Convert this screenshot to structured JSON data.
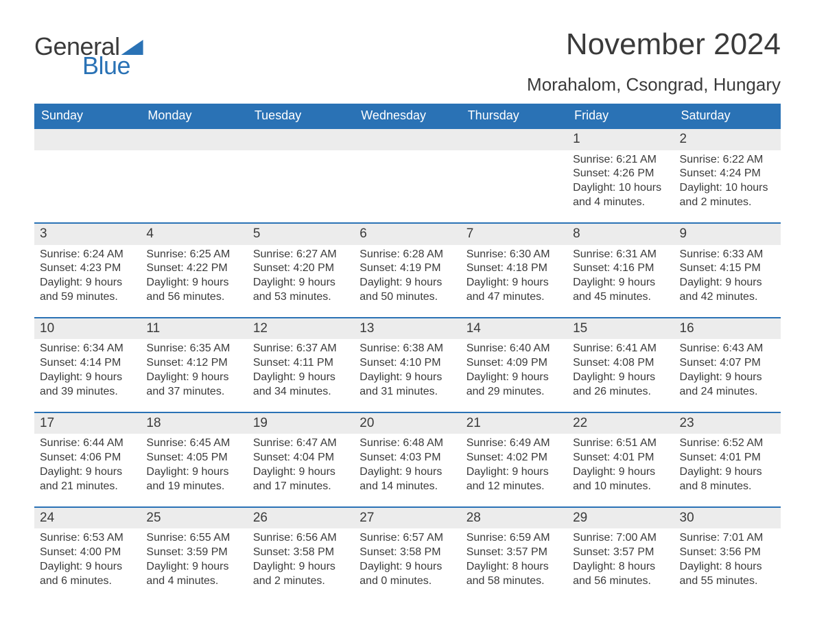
{
  "brand": {
    "general": "General",
    "blue": "Blue"
  },
  "title": "November 2024",
  "location": "Morahalom, Csongrad, Hungary",
  "accent_color": "#2a72b5",
  "stripe_color": "#ececec",
  "text_color": "#3a3a3a",
  "day_headers": [
    "Sunday",
    "Monday",
    "Tuesday",
    "Wednesday",
    "Thursday",
    "Friday",
    "Saturday"
  ],
  "weeks": [
    [
      {
        "blank": true
      },
      {
        "blank": true
      },
      {
        "blank": true
      },
      {
        "blank": true
      },
      {
        "blank": true
      },
      {
        "n": "1",
        "sunrise": "Sunrise: 6:21 AM",
        "sunset": "Sunset: 4:26 PM",
        "d1": "Daylight: 10 hours",
        "d2": "and 4 minutes."
      },
      {
        "n": "2",
        "sunrise": "Sunrise: 6:22 AM",
        "sunset": "Sunset: 4:24 PM",
        "d1": "Daylight: 10 hours",
        "d2": "and 2 minutes."
      }
    ],
    [
      {
        "n": "3",
        "sunrise": "Sunrise: 6:24 AM",
        "sunset": "Sunset: 4:23 PM",
        "d1": "Daylight: 9 hours",
        "d2": "and 59 minutes."
      },
      {
        "n": "4",
        "sunrise": "Sunrise: 6:25 AM",
        "sunset": "Sunset: 4:22 PM",
        "d1": "Daylight: 9 hours",
        "d2": "and 56 minutes."
      },
      {
        "n": "5",
        "sunrise": "Sunrise: 6:27 AM",
        "sunset": "Sunset: 4:20 PM",
        "d1": "Daylight: 9 hours",
        "d2": "and 53 minutes."
      },
      {
        "n": "6",
        "sunrise": "Sunrise: 6:28 AM",
        "sunset": "Sunset: 4:19 PM",
        "d1": "Daylight: 9 hours",
        "d2": "and 50 minutes."
      },
      {
        "n": "7",
        "sunrise": "Sunrise: 6:30 AM",
        "sunset": "Sunset: 4:18 PM",
        "d1": "Daylight: 9 hours",
        "d2": "and 47 minutes."
      },
      {
        "n": "8",
        "sunrise": "Sunrise: 6:31 AM",
        "sunset": "Sunset: 4:16 PM",
        "d1": "Daylight: 9 hours",
        "d2": "and 45 minutes."
      },
      {
        "n": "9",
        "sunrise": "Sunrise: 6:33 AM",
        "sunset": "Sunset: 4:15 PM",
        "d1": "Daylight: 9 hours",
        "d2": "and 42 minutes."
      }
    ],
    [
      {
        "n": "10",
        "sunrise": "Sunrise: 6:34 AM",
        "sunset": "Sunset: 4:14 PM",
        "d1": "Daylight: 9 hours",
        "d2": "and 39 minutes."
      },
      {
        "n": "11",
        "sunrise": "Sunrise: 6:35 AM",
        "sunset": "Sunset: 4:12 PM",
        "d1": "Daylight: 9 hours",
        "d2": "and 37 minutes."
      },
      {
        "n": "12",
        "sunrise": "Sunrise: 6:37 AM",
        "sunset": "Sunset: 4:11 PM",
        "d1": "Daylight: 9 hours",
        "d2": "and 34 minutes."
      },
      {
        "n": "13",
        "sunrise": "Sunrise: 6:38 AM",
        "sunset": "Sunset: 4:10 PM",
        "d1": "Daylight: 9 hours",
        "d2": "and 31 minutes."
      },
      {
        "n": "14",
        "sunrise": "Sunrise: 6:40 AM",
        "sunset": "Sunset: 4:09 PM",
        "d1": "Daylight: 9 hours",
        "d2": "and 29 minutes."
      },
      {
        "n": "15",
        "sunrise": "Sunrise: 6:41 AM",
        "sunset": "Sunset: 4:08 PM",
        "d1": "Daylight: 9 hours",
        "d2": "and 26 minutes."
      },
      {
        "n": "16",
        "sunrise": "Sunrise: 6:43 AM",
        "sunset": "Sunset: 4:07 PM",
        "d1": "Daylight: 9 hours",
        "d2": "and 24 minutes."
      }
    ],
    [
      {
        "n": "17",
        "sunrise": "Sunrise: 6:44 AM",
        "sunset": "Sunset: 4:06 PM",
        "d1": "Daylight: 9 hours",
        "d2": "and 21 minutes."
      },
      {
        "n": "18",
        "sunrise": "Sunrise: 6:45 AM",
        "sunset": "Sunset: 4:05 PM",
        "d1": "Daylight: 9 hours",
        "d2": "and 19 minutes."
      },
      {
        "n": "19",
        "sunrise": "Sunrise: 6:47 AM",
        "sunset": "Sunset: 4:04 PM",
        "d1": "Daylight: 9 hours",
        "d2": "and 17 minutes."
      },
      {
        "n": "20",
        "sunrise": "Sunrise: 6:48 AM",
        "sunset": "Sunset: 4:03 PM",
        "d1": "Daylight: 9 hours",
        "d2": "and 14 minutes."
      },
      {
        "n": "21",
        "sunrise": "Sunrise: 6:49 AM",
        "sunset": "Sunset: 4:02 PM",
        "d1": "Daylight: 9 hours",
        "d2": "and 12 minutes."
      },
      {
        "n": "22",
        "sunrise": "Sunrise: 6:51 AM",
        "sunset": "Sunset: 4:01 PM",
        "d1": "Daylight: 9 hours",
        "d2": "and 10 minutes."
      },
      {
        "n": "23",
        "sunrise": "Sunrise: 6:52 AM",
        "sunset": "Sunset: 4:01 PM",
        "d1": "Daylight: 9 hours",
        "d2": "and 8 minutes."
      }
    ],
    [
      {
        "n": "24",
        "sunrise": "Sunrise: 6:53 AM",
        "sunset": "Sunset: 4:00 PM",
        "d1": "Daylight: 9 hours",
        "d2": "and 6 minutes."
      },
      {
        "n": "25",
        "sunrise": "Sunrise: 6:55 AM",
        "sunset": "Sunset: 3:59 PM",
        "d1": "Daylight: 9 hours",
        "d2": "and 4 minutes."
      },
      {
        "n": "26",
        "sunrise": "Sunrise: 6:56 AM",
        "sunset": "Sunset: 3:58 PM",
        "d1": "Daylight: 9 hours",
        "d2": "and 2 minutes."
      },
      {
        "n": "27",
        "sunrise": "Sunrise: 6:57 AM",
        "sunset": "Sunset: 3:58 PM",
        "d1": "Daylight: 9 hours",
        "d2": "and 0 minutes."
      },
      {
        "n": "28",
        "sunrise": "Sunrise: 6:59 AM",
        "sunset": "Sunset: 3:57 PM",
        "d1": "Daylight: 8 hours",
        "d2": "and 58 minutes."
      },
      {
        "n": "29",
        "sunrise": "Sunrise: 7:00 AM",
        "sunset": "Sunset: 3:57 PM",
        "d1": "Daylight: 8 hours",
        "d2": "and 56 minutes."
      },
      {
        "n": "30",
        "sunrise": "Sunrise: 7:01 AM",
        "sunset": "Sunset: 3:56 PM",
        "d1": "Daylight: 8 hours",
        "d2": "and 55 minutes."
      }
    ]
  ]
}
